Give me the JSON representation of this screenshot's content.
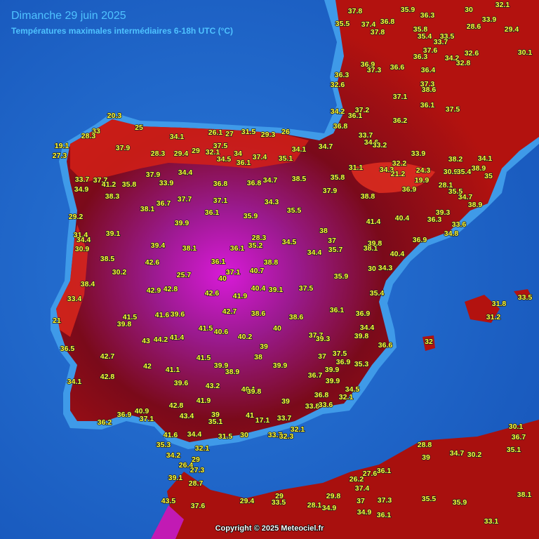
{
  "header": {
    "title": "Dimanche 29 juin 2025",
    "subtitle": "Températures maximales intermédiaires 6-18h UTC (°C)"
  },
  "footer": {
    "copyright": "Copyright © 2025 Meteociel.fr"
  },
  "stations": [
    20.3,
    25,
    33,
    28.3,
    19.1,
    27.3,
    37.9,
    28.3,
    29.4,
    29,
    26.1,
    27,
    31.5,
    29.3,
    26,
    34.1,
    37.5,
    32.1,
    34.5,
    34,
    36.1,
    37.4,
    35.1,
    34.1,
    34.7,
    33.7,
    34.9,
    37.7,
    41.2,
    35.8,
    37.9,
    34.4,
    33.9,
    36.8,
    36.8,
    34.7,
    38.5,
    37.9,
    35.8,
    38.3,
    36.7,
    37.7,
    37.1,
    34.3,
    35.5,
    38.1,
    29.2,
    36.1,
    35.9,
    38.8,
    36.9,
    19.9,
    41.4,
    40.4,
    38,
    39.9,
    39.1,
    31.4,
    34.4,
    30.9,
    39.4,
    38.1,
    28.3,
    35.2,
    36.1,
    34.5,
    37,
    35.7,
    34.4,
    38.1,
    39.8,
    40.4,
    36.9,
    38.5,
    42.6,
    25.7,
    30.2,
    36.1,
    38.8,
    37.1,
    40,
    40.7,
    30,
    34.3,
    35.9,
    38.4,
    33.4,
    42.9,
    42.8,
    42.6,
    40.4,
    39.1,
    37.5,
    41.9,
    35.4,
    36.1,
    36.9,
    42.7,
    38.6,
    38.6,
    41.5,
    41.6,
    39.6,
    39.8,
    21,
    41.5,
    40.6,
    40,
    34.4,
    39.8,
    43,
    44.2,
    41.4,
    40.2,
    37.7,
    39.3,
    39,
    36.6,
    36.5,
    42.7,
    42,
    41.1,
    41.5,
    38,
    39.9,
    38.9,
    39.9,
    37,
    37.5,
    36.9,
    35.3,
    39.9,
    36.7,
    34.1,
    42.8,
    39.6,
    43.2,
    40.1,
    39.8,
    39.9,
    34.5,
    36.8,
    32.1,
    42.8,
    41.9,
    39,
    33.8,
    33.6,
    40.9,
    36.9,
    37.1,
    36.2,
    43.4,
    39,
    35.1,
    41,
    17.1,
    33.7,
    32.1,
    41.6,
    34.4,
    31.5,
    30,
    33.7,
    32.3,
    35.3,
    32.1,
    34.2,
    29,
    26.4,
    27.3,
    39.1,
    28.7,
    43.5,
    37.6,
    29.4,
    29,
    33.5,
    28.1,
    34.9,
    29.8,
    37,
    37.3,
    34.9,
    36.1,
    35.5,
    35.9,
    33.1,
    38.1,
    37.8,
    35.9,
    36.3,
    30,
    32.1,
    33.9,
    37.4,
    36.8,
    35.5,
    37.8,
    35.8,
    35.4,
    33.5,
    33.7,
    28.6,
    29.4,
    37.6,
    36.3,
    34.2,
    32.6,
    32.8,
    30.1,
    36.9,
    37.3,
    36.6,
    36.4,
    36.3,
    32.6,
    37.1,
    37.3,
    38.6,
    36.1,
    37.5,
    34.2,
    37.2,
    36.8,
    36.1,
    36.2,
    33.7,
    34.6,
    33.2,
    33.9,
    32.2,
    31.1,
    34.3,
    21.2,
    24.3,
    38.2,
    34.1,
    38.9,
    35,
    28.1,
    35.5,
    34.7,
    38.9,
    39.3,
    36.3,
    33.6,
    34.8,
    30.9,
    35.4,
    31.8,
    33.5,
    31.2,
    32,
    28.8,
    39,
    34.7,
    30.2,
    30.1,
    36.7,
    35.1,
    27.6,
    36.1,
    26.2,
    37.4
  ]
}
